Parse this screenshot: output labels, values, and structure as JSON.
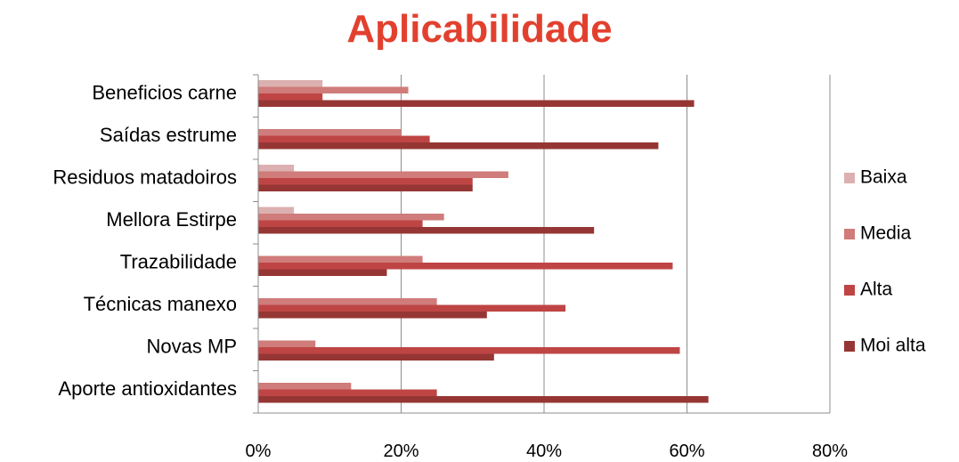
{
  "chart_data": {
    "type": "bar",
    "orientation": "horizontal",
    "title": "Aplicabilidade",
    "title_color": "#e2402e",
    "categories": [
      "Beneficios carne",
      "Saídas estrume",
      "Residuos matadoiros",
      "Mellora Estirpe",
      "Trazabilidade",
      "Técnicas manexo",
      "Novas MP",
      "Aporte antioxidantes"
    ],
    "series": [
      {
        "name": "Baixa",
        "color": "#dcb0b0",
        "values": [
          9,
          0,
          5,
          5,
          0,
          0,
          0,
          0
        ]
      },
      {
        "name": "Media",
        "color": "#cf7c7a",
        "values": [
          21,
          20,
          35,
          26,
          23,
          25,
          8,
          13
        ]
      },
      {
        "name": "Alta",
        "color": "#bf4545",
        "values": [
          9,
          24,
          30,
          23,
          58,
          43,
          59,
          25
        ]
      },
      {
        "name": "Moi alta",
        "color": "#963634",
        "values": [
          61,
          56,
          30,
          47,
          18,
          32,
          33,
          63
        ]
      }
    ],
    "x_ticks": [
      "0%",
      "20%",
      "40%",
      "60%",
      "80%"
    ],
    "xlim": [
      0,
      80
    ],
    "grid": true,
    "legend": "right"
  }
}
